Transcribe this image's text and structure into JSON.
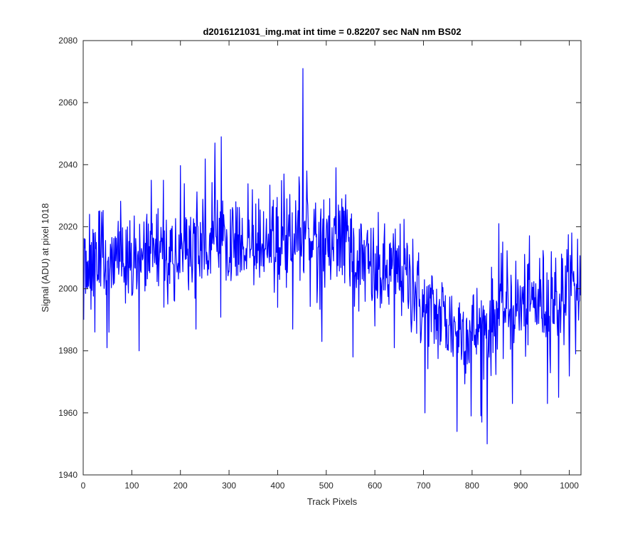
{
  "chart_data": {
    "type": "line",
    "title": "d2016121031_img.mat int time = 0.82207 sec  NaN nm BS02",
    "xlabel": "Track Pixels",
    "ylabel": "Signal (ADU) at pixel 1018",
    "xlim": [
      0,
      1024
    ],
    "ylim": [
      1940,
      2080
    ],
    "xticks": [
      0,
      100,
      200,
      300,
      400,
      500,
      600,
      700,
      800,
      900,
      1000
    ],
    "yticks": [
      1940,
      1960,
      1980,
      2000,
      2020,
      2040,
      2060,
      2080
    ],
    "grid": false,
    "line_color": "#0000ff",
    "series": [
      {
        "x": [
          0,
          20,
          40,
          60,
          80,
          100,
          120,
          140,
          160,
          180,
          200,
          220,
          240,
          260,
          280,
          300,
          320,
          340,
          360,
          380,
          400,
          420,
          440,
          460,
          480,
          500,
          520,
          540,
          560,
          580,
          600,
          620,
          640,
          660,
          680,
          700,
          720,
          740,
          760,
          780,
          800,
          820,
          840,
          860,
          880,
          900,
          920,
          940,
          960,
          980,
          1000,
          1024
        ],
        "values": [
          2010,
          2008,
          2011,
          2009,
          2010,
          2007,
          2011,
          2012,
          2013,
          2012,
          2013,
          2012,
          2014,
          2013,
          2015,
          2014,
          2015,
          2017,
          2016,
          2015,
          2017,
          2016,
          2018,
          2017,
          2016,
          2012,
          2016,
          2015,
          2010,
          2008,
          2005,
          2004,
          2006,
          2005,
          2000,
          1993,
          1992,
          1990,
          1988,
          1987,
          1986,
          1987,
          1989,
          1993,
          1995,
          1994,
          1995,
          1996,
          1996,
          1997,
          1999,
          2000
        ],
        "points": [
          [
            1,
            1990
          ],
          [
            4,
            2016
          ],
          [
            13,
            2024
          ],
          [
            49,
            1981
          ],
          [
            53,
            1986
          ],
          [
            115,
            1980
          ],
          [
            140,
            2035
          ],
          [
            165,
            2035
          ],
          [
            188,
            1996
          ],
          [
            232,
            1987
          ],
          [
            271,
            2047
          ],
          [
            284,
            2049
          ],
          [
            400,
            1994
          ],
          [
            413,
            2037
          ],
          [
            431,
            1987
          ],
          [
            452,
            2071
          ],
          [
            491,
            1983
          ],
          [
            520,
            2039
          ],
          [
            555,
            1978
          ],
          [
            600,
            1988
          ],
          [
            640,
            1981
          ],
          [
            678,
            2016
          ],
          [
            703,
            1960
          ],
          [
            738,
            2002
          ],
          [
            769,
            1954
          ],
          [
            798,
            1959
          ],
          [
            820,
            1957
          ],
          [
            831,
            1950
          ],
          [
            855,
            2021
          ],
          [
            883,
            1963
          ],
          [
            955,
            1963
          ],
          [
            963,
            2012
          ],
          [
            978,
            1965
          ],
          [
            1005,
            2018
          ],
          [
            1013,
            1979
          ],
          [
            1017,
            2016
          ]
        ],
        "noise_amplitude": 8
      }
    ]
  }
}
